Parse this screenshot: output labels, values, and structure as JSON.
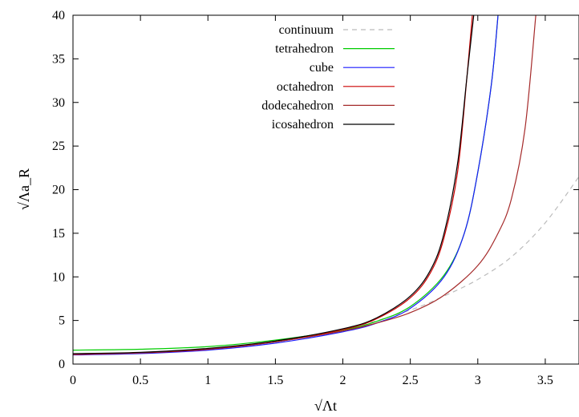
{
  "chart_data": {
    "type": "line",
    "title": "",
    "xlabel": "√Λt",
    "ylabel": "√Λa_R",
    "xlim": [
      0,
      3.75
    ],
    "ylim": [
      0,
      40
    ],
    "xticks": [
      "0",
      "0.5",
      "1",
      "1.5",
      "2",
      "2.5",
      "3",
      "3.5"
    ],
    "xtick_values": [
      0,
      0.5,
      1,
      1.5,
      2,
      2.5,
      3,
      3.5
    ],
    "yticks": [
      "0",
      "5",
      "10",
      "15",
      "20",
      "25",
      "30",
      "35",
      "40"
    ],
    "ytick_values": [
      0,
      5,
      10,
      15,
      20,
      25,
      30,
      35,
      40
    ],
    "grid": false,
    "legend_position": "top-center",
    "series": [
      {
        "name": "continuum",
        "color": "#bbbbbb",
        "dashed": true,
        "points": [
          [
            0,
            1.15
          ],
          [
            0.5,
            1.3
          ],
          [
            1,
            1.75
          ],
          [
            1.5,
            2.6
          ],
          [
            2,
            3.9
          ],
          [
            2.5,
            6.2
          ],
          [
            2.75,
            7.8
          ],
          [
            3,
            9.7
          ],
          [
            3.25,
            12.3
          ],
          [
            3.5,
            16.2
          ],
          [
            3.75,
            21.5
          ]
        ]
      },
      {
        "name": "tetrahedron",
        "color": "#00cc00",
        "dashed": false,
        "points": [
          [
            0,
            1.6
          ],
          [
            0.5,
            1.7
          ],
          [
            1,
            2.0
          ],
          [
            1.5,
            2.75
          ],
          [
            2,
            3.9
          ],
          [
            2.25,
            4.9
          ],
          [
            2.5,
            6.6
          ],
          [
            2.75,
            10.2
          ],
          [
            2.9,
            15.0
          ],
          [
            3.0,
            22.0
          ],
          [
            3.1,
            32.0
          ],
          [
            3.15,
            40.0
          ]
        ]
      },
      {
        "name": "cube",
        "color": "#1a1aff",
        "dashed": false,
        "points": [
          [
            0,
            1.05
          ],
          [
            0.5,
            1.2
          ],
          [
            1,
            1.6
          ],
          [
            1.5,
            2.4
          ],
          [
            2,
            3.7
          ],
          [
            2.25,
            4.7
          ],
          [
            2.5,
            6.4
          ],
          [
            2.75,
            10.0
          ],
          [
            2.9,
            15.0
          ],
          [
            3.0,
            22.0
          ],
          [
            3.1,
            32.0
          ],
          [
            3.15,
            40.0
          ]
        ]
      },
      {
        "name": "octahedron",
        "color": "#cc0000",
        "dashed": false,
        "points": [
          [
            0,
            1.1
          ],
          [
            0.5,
            1.28
          ],
          [
            1,
            1.7
          ],
          [
            1.5,
            2.55
          ],
          [
            2,
            3.95
          ],
          [
            2.25,
            5.2
          ],
          [
            2.5,
            7.6
          ],
          [
            2.65,
            10.5
          ],
          [
            2.75,
            14.5
          ],
          [
            2.85,
            22.0
          ],
          [
            2.92,
            33.0
          ],
          [
            2.96,
            40.0
          ]
        ]
      },
      {
        "name": "dodecahedron",
        "color": "#a52a2a",
        "dashed": false,
        "points": [
          [
            0,
            1.15
          ],
          [
            0.5,
            1.3
          ],
          [
            1,
            1.75
          ],
          [
            1.5,
            2.55
          ],
          [
            2,
            3.8
          ],
          [
            2.25,
            4.7
          ],
          [
            2.5,
            5.9
          ],
          [
            2.75,
            7.9
          ],
          [
            3.0,
            11.3
          ],
          [
            3.15,
            15.0
          ],
          [
            3.25,
            19.0
          ],
          [
            3.35,
            27.0
          ],
          [
            3.43,
            40.0
          ]
        ]
      },
      {
        "name": "icosahedron",
        "color": "#000000",
        "dashed": false,
        "points": [
          [
            0,
            1.2
          ],
          [
            0.5,
            1.35
          ],
          [
            1,
            1.8
          ],
          [
            1.5,
            2.65
          ],
          [
            2,
            4.05
          ],
          [
            2.25,
            5.3
          ],
          [
            2.5,
            7.8
          ],
          [
            2.65,
            10.8
          ],
          [
            2.75,
            15.0
          ],
          [
            2.85,
            23.0
          ],
          [
            2.92,
            33.0
          ],
          [
            2.97,
            40.0
          ]
        ]
      }
    ]
  }
}
